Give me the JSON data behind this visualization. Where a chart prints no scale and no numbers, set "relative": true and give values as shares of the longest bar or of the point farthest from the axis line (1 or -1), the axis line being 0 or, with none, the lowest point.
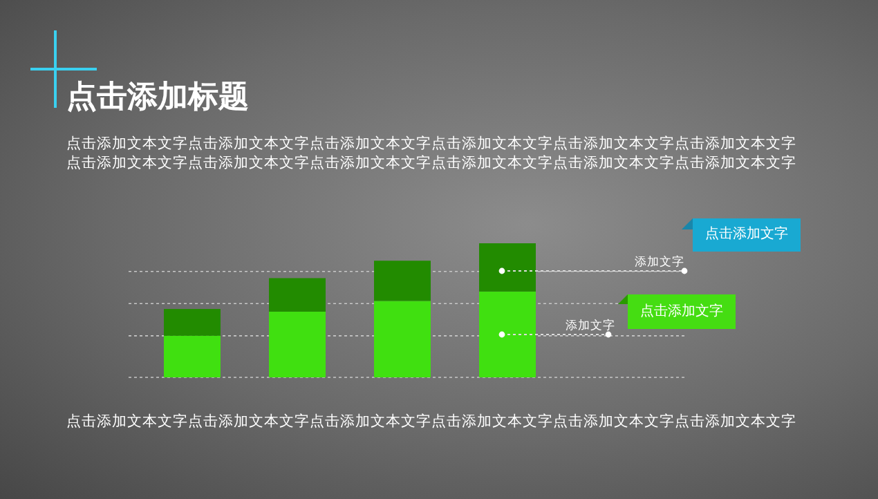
{
  "chart_data": {
    "type": "bar",
    "title": "点击添加标题",
    "subtitle": "点击添加文本文字点击添加文本文字点击添加文本文字点击添加文本文字点击添加文本文字点击添加文本文字点击添加文本文字点击添加文本文字点击添加文本文字点击添加文本文字点击添加文本文字点击添加文本文字",
    "categories": [
      null,
      null,
      null,
      null
    ],
    "relative": true,
    "stacked": true,
    "grid": true,
    "series": [
      {
        "color": "#40e010",
        "values": [
          0.31,
          0.49,
          0.57,
          0.64
        ]
      },
      {
        "color": "#228b00",
        "values": [
          0.2,
          0.25,
          0.3,
          0.36
        ]
      }
    ],
    "annotations": [
      "添加文字",
      "点击添加文字",
      "添加文字",
      "点击添加文字",
      "点击添加文本文字点击添加文本文字点击添加文本文字点击添加文本文字点击添加文本文字点击添加文本文字"
    ]
  }
}
